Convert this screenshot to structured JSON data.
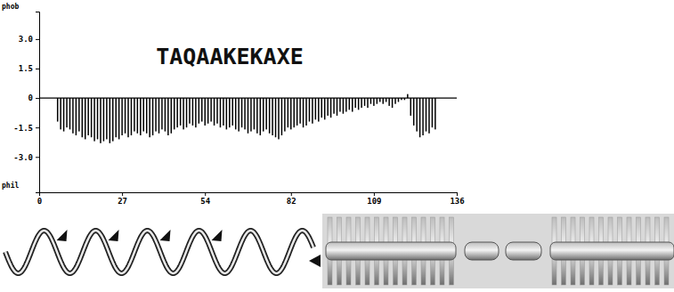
{
  "chart_data": {
    "type": "bar",
    "title": "TAQAAKEKAXE",
    "annotations": [
      "phob",
      "phil"
    ],
    "color": "#000000",
    "x": [
      6,
      7,
      8,
      9,
      10,
      11,
      12,
      13,
      14,
      15,
      16,
      17,
      18,
      19,
      20,
      21,
      22,
      23,
      24,
      25,
      26,
      27,
      28,
      29,
      30,
      31,
      32,
      33,
      34,
      35,
      36,
      37,
      38,
      39,
      40,
      41,
      42,
      43,
      44,
      45,
      46,
      47,
      48,
      49,
      50,
      51,
      52,
      53,
      54,
      55,
      56,
      57,
      58,
      59,
      60,
      61,
      62,
      63,
      64,
      65,
      66,
      67,
      68,
      69,
      70,
      71,
      72,
      73,
      74,
      75,
      76,
      77,
      78,
      79,
      80,
      81,
      82,
      83,
      84,
      85,
      86,
      87,
      88,
      89,
      90,
      91,
      92,
      93,
      94,
      95,
      96,
      97,
      98,
      99,
      100,
      101,
      102,
      103,
      104,
      105,
      106,
      107,
      108,
      109,
      110,
      111,
      112,
      113,
      114,
      115,
      116,
      117,
      118,
      119,
      120,
      121,
      122,
      123,
      124,
      125,
      126,
      127,
      128,
      129
    ],
    "values": [
      -1.2,
      -1.6,
      -1.7,
      -1.5,
      -1.6,
      -1.8,
      -1.9,
      -1.7,
      -2.0,
      -2.1,
      -1.9,
      -2.0,
      -2.2,
      -2.1,
      -2.3,
      -2.2,
      -2.1,
      -2.3,
      -2.2,
      -2.0,
      -2.1,
      -1.9,
      -1.8,
      -2.0,
      -1.9,
      -1.7,
      -1.8,
      -1.9,
      -1.7,
      -1.8,
      -2.0,
      -1.9,
      -1.7,
      -1.8,
      -1.6,
      -1.7,
      -1.9,
      -1.8,
      -1.6,
      -1.5,
      -1.4,
      -1.6,
      -1.5,
      -1.3,
      -1.4,
      -1.5,
      -1.3,
      -1.2,
      -1.4,
      -1.3,
      -1.2,
      -1.4,
      -1.3,
      -1.5,
      -1.4,
      -1.6,
      -1.5,
      -1.4,
      -1.6,
      -1.7,
      -1.5,
      -1.6,
      -1.8,
      -1.7,
      -1.6,
      -1.8,
      -1.9,
      -1.7,
      -1.6,
      -1.8,
      -1.9,
      -2.0,
      -2.1,
      -1.9,
      -1.7,
      -1.5,
      -1.6,
      -1.5,
      -1.4,
      -1.3,
      -1.5,
      -1.4,
      -1.2,
      -1.3,
      -1.1,
      -1.2,
      -1.0,
      -1.1,
      -0.9,
      -1.0,
      -0.8,
      -0.9,
      -0.7,
      -0.8,
      -0.7,
      -0.6,
      -0.7,
      -0.5,
      -0.6,
      -0.5,
      -0.4,
      -0.5,
      -0.3,
      -0.4,
      -0.3,
      -0.2,
      -0.3,
      -0.2,
      -0.4,
      -0.5,
      -0.3,
      -0.2,
      -0.1,
      -0.1,
      0.2,
      -0.9,
      -1.4,
      -1.7,
      -2.0,
      -1.9,
      -1.7,
      -1.8,
      -1.5,
      -1.6
    ],
    "xlim": [
      0,
      136
    ],
    "ylim": [
      -4.8,
      4.4
    ],
    "xticks": [
      0,
      27,
      54,
      82,
      109,
      136
    ],
    "yticks": [
      {
        "value": 3,
        "label": "3.0"
      },
      1.5,
      0,
      -1.5,
      {
        "value": -3,
        "label": "-3.0"
      }
    ],
    "grid": false
  }
}
